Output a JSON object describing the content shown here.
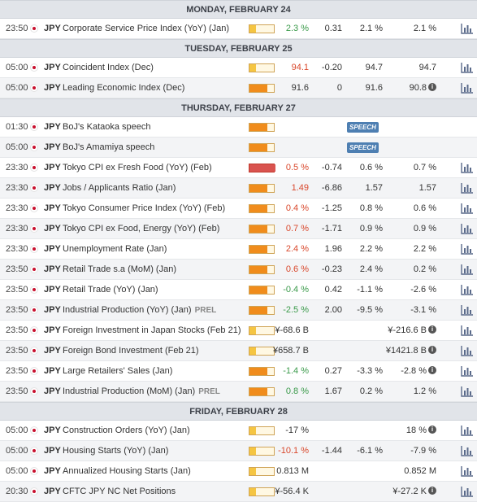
{
  "calendar": {
    "accent_colors": {
      "negative": "#d9472b",
      "positive": "#3a9a4a",
      "speech": "#4e7fb2",
      "high": "#d9534f",
      "medium": "#f08c1c",
      "low": "#f5c542"
    },
    "icons": {
      "flag": "japan-flag-icon",
      "chart": "bar-chart-icon",
      "info": "info-icon"
    },
    "days": [
      {
        "label": "MONDAY, FEBRUARY 24",
        "events": [
          {
            "time": "23:50",
            "currency": "JPY",
            "event": "Corporate Service Price Index (YoY) (Jan)",
            "prel": "",
            "impact": "low",
            "actual": "2.3 %",
            "actual_trend": "pos",
            "deviation": "0.31",
            "consensus": "2.1 %",
            "previous": "2.1 %",
            "info": false,
            "speech": ""
          }
        ]
      },
      {
        "label": "TUESDAY, FEBRUARY 25",
        "events": [
          {
            "time": "05:00",
            "currency": "JPY",
            "event": "Coincident Index (Dec)",
            "prel": "",
            "impact": "low",
            "actual": "94.1",
            "actual_trend": "neg",
            "deviation": "-0.20",
            "consensus": "94.7",
            "previous": "94.7",
            "info": false,
            "speech": ""
          },
          {
            "time": "05:00",
            "currency": "JPY",
            "event": "Leading Economic Index (Dec)",
            "prel": "",
            "impact": "med",
            "actual": "91.6",
            "actual_trend": "neu",
            "deviation": "0",
            "consensus": "91.6",
            "previous": "90.8",
            "info": true,
            "speech": ""
          }
        ]
      },
      {
        "label": "THURSDAY, FEBRUARY 27",
        "events": [
          {
            "time": "01:30",
            "currency": "JPY",
            "event": "BoJ's Kataoka speech",
            "prel": "",
            "impact": "med",
            "actual": "",
            "actual_trend": "neu",
            "deviation": "",
            "consensus": "",
            "previous": "",
            "info": false,
            "speech": "SPEECH"
          },
          {
            "time": "05:00",
            "currency": "JPY",
            "event": "BoJ's Amamiya speech",
            "prel": "",
            "impact": "med",
            "actual": "",
            "actual_trend": "neu",
            "deviation": "",
            "consensus": "",
            "previous": "",
            "info": false,
            "speech": "SPEECH"
          },
          {
            "time": "23:30",
            "currency": "JPY",
            "event": "Tokyo CPI ex Fresh Food (YoY) (Feb)",
            "prel": "",
            "impact": "high",
            "actual": "0.5 %",
            "actual_trend": "neg",
            "deviation": "-0.74",
            "consensus": "0.6 %",
            "previous": "0.7 %",
            "info": false,
            "speech": ""
          },
          {
            "time": "23:30",
            "currency": "JPY",
            "event": "Jobs / Applicants Ratio (Jan)",
            "prel": "",
            "impact": "med",
            "actual": "1.49",
            "actual_trend": "neg",
            "deviation": "-6.86",
            "consensus": "1.57",
            "previous": "1.57",
            "info": false,
            "speech": ""
          },
          {
            "time": "23:30",
            "currency": "JPY",
            "event": "Tokyo Consumer Price Index (YoY) (Feb)",
            "prel": "",
            "impact": "med",
            "actual": "0.4 %",
            "actual_trend": "neg",
            "deviation": "-1.25",
            "consensus": "0.8 %",
            "previous": "0.6 %",
            "info": false,
            "speech": ""
          },
          {
            "time": "23:30",
            "currency": "JPY",
            "event": "Tokyo CPI ex Food, Energy (YoY) (Feb)",
            "prel": "",
            "impact": "med",
            "actual": "0.7 %",
            "actual_trend": "neg",
            "deviation": "-1.71",
            "consensus": "0.9 %",
            "previous": "0.9 %",
            "info": false,
            "speech": ""
          },
          {
            "time": "23:30",
            "currency": "JPY",
            "event": "Unemployment Rate (Jan)",
            "prel": "",
            "impact": "med",
            "actual": "2.4 %",
            "actual_trend": "neg",
            "deviation": "1.96",
            "consensus": "2.2 %",
            "previous": "2.2 %",
            "info": false,
            "speech": ""
          },
          {
            "time": "23:50",
            "currency": "JPY",
            "event": "Retail Trade s.a (MoM) (Jan)",
            "prel": "",
            "impact": "med",
            "actual": "0.6 %",
            "actual_trend": "neg",
            "deviation": "-0.23",
            "consensus": "2.4 %",
            "previous": "0.2 %",
            "info": false,
            "speech": ""
          },
          {
            "time": "23:50",
            "currency": "JPY",
            "event": "Retail Trade (YoY) (Jan)",
            "prel": "",
            "impact": "med",
            "actual": "-0.4 %",
            "actual_trend": "pos",
            "deviation": "0.42",
            "consensus": "-1.1 %",
            "previous": "-2.6 %",
            "info": false,
            "speech": ""
          },
          {
            "time": "23:50",
            "currency": "JPY",
            "event": "Industrial Production (YoY) (Jan)",
            "prel": "PREL",
            "impact": "med",
            "actual": "-2.5 %",
            "actual_trend": "pos",
            "deviation": "2.00",
            "consensus": "-9.5 %",
            "previous": "-3.1 %",
            "info": false,
            "speech": ""
          },
          {
            "time": "23:50",
            "currency": "JPY",
            "event": "Foreign Investment in Japan Stocks (Feb 21)",
            "prel": "",
            "impact": "low",
            "actual": "¥-68.6 B",
            "actual_trend": "neu",
            "deviation": "",
            "consensus": "",
            "previous": "¥-216.6 B",
            "info": true,
            "speech": ""
          },
          {
            "time": "23:50",
            "currency": "JPY",
            "event": "Foreign Bond Investment (Feb 21)",
            "prel": "",
            "impact": "low",
            "actual": "¥658.7 B",
            "actual_trend": "neu",
            "deviation": "",
            "consensus": "",
            "previous": "¥1421.8 B",
            "info": true,
            "speech": ""
          },
          {
            "time": "23:50",
            "currency": "JPY",
            "event": "Large Retailers' Sales (Jan)",
            "prel": "",
            "impact": "med",
            "actual": "-1.4 %",
            "actual_trend": "pos",
            "deviation": "0.27",
            "consensus": "-3.3 %",
            "previous": "-2.8 %",
            "info": true,
            "speech": ""
          },
          {
            "time": "23:50",
            "currency": "JPY",
            "event": "Industrial Production (MoM) (Jan)",
            "prel": "PREL",
            "impact": "med",
            "actual": "0.8 %",
            "actual_trend": "pos",
            "deviation": "1.67",
            "consensus": "0.2 %",
            "previous": "1.2 %",
            "info": false,
            "speech": ""
          }
        ]
      },
      {
        "label": "FRIDAY, FEBRUARY 28",
        "events": [
          {
            "time": "05:00",
            "currency": "JPY",
            "event": "Construction Orders (YoY) (Jan)",
            "prel": "",
            "impact": "low",
            "actual": "-17 %",
            "actual_trend": "neu",
            "deviation": "",
            "consensus": "",
            "previous": "18 %",
            "info": true,
            "speech": ""
          },
          {
            "time": "05:00",
            "currency": "JPY",
            "event": "Housing Starts (YoY) (Jan)",
            "prel": "",
            "impact": "low",
            "actual": "-10.1 %",
            "actual_trend": "neg",
            "deviation": "-1.44",
            "consensus": "-6.1 %",
            "previous": "-7.9 %",
            "info": false,
            "speech": ""
          },
          {
            "time": "05:00",
            "currency": "JPY",
            "event": "Annualized Housing Starts (Jan)",
            "prel": "",
            "impact": "low",
            "actual": "0.813 M",
            "actual_trend": "neu",
            "deviation": "",
            "consensus": "",
            "previous": "0.852 M",
            "info": false,
            "speech": ""
          },
          {
            "time": "20:30",
            "currency": "JPY",
            "event": "CFTC JPY NC Net Positions",
            "prel": "",
            "impact": "low",
            "actual": "¥-56.4 K",
            "actual_trend": "neu",
            "deviation": "",
            "consensus": "",
            "previous": "¥-27.2 K",
            "info": true,
            "speech": ""
          }
        ]
      }
    ]
  }
}
